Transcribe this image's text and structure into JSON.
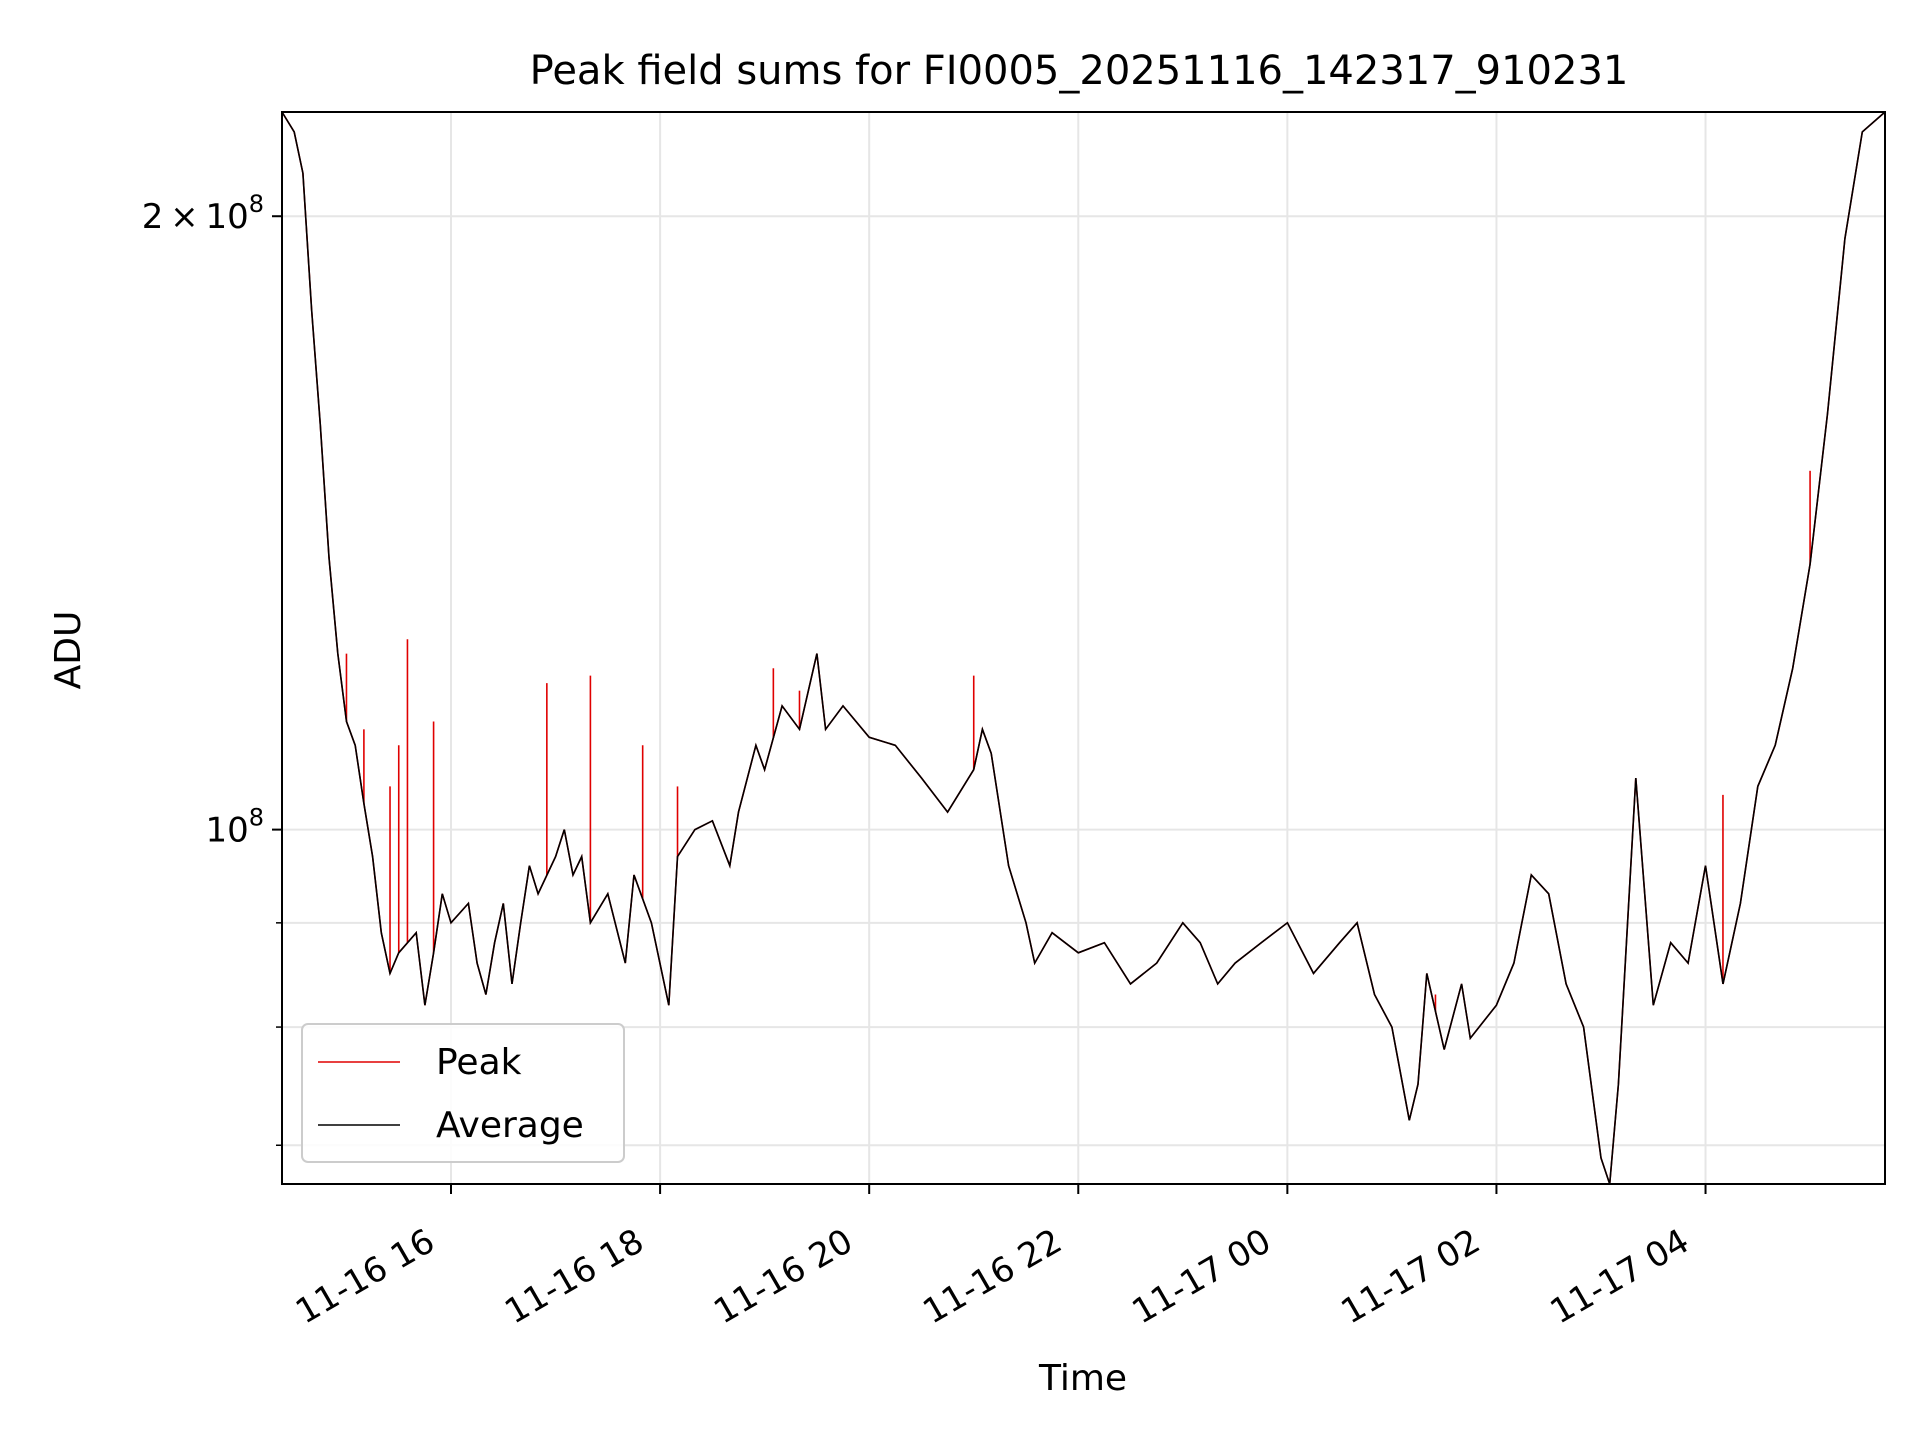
{
  "chart_data": {
    "type": "line",
    "title": "Peak field sums for FI0005_20251116_142317_910231",
    "xlabel": "Time",
    "ylabel": "ADU",
    "yscale": "log",
    "ylim": [
      67000000,
      225000000
    ],
    "xlim": [
      "2025-11-16 14:23",
      "2025-11-17 05:43"
    ],
    "grid": true,
    "legend_position": "lower-left",
    "x_ticks": [
      {
        "t": "2025-11-16 16:00",
        "label": "11-16 16"
      },
      {
        "t": "2025-11-16 18:00",
        "label": "11-16 18"
      },
      {
        "t": "2025-11-16 20:00",
        "label": "11-16 20"
      },
      {
        "t": "2025-11-16 22:00",
        "label": "11-16 22"
      },
      {
        "t": "2025-11-17 00:00",
        "label": "11-17 00"
      },
      {
        "t": "2025-11-17 02:00",
        "label": "11-17 02"
      },
      {
        "t": "2025-11-17 04:00",
        "label": "11-17 04"
      }
    ],
    "y_major_ticks": [
      {
        "value": 100000000,
        "base": "10",
        "exp": "8",
        "mantissa": ""
      },
      {
        "value": 200000000,
        "base": "10",
        "exp": "8",
        "mantissa": "2"
      }
    ],
    "y_minor_ticks": [
      70000000,
      80000000,
      90000000
    ],
    "series": [
      {
        "name": "Average",
        "color": "#000000",
        "points": [
          [
            "2025-11-16 14:23",
            225000000
          ],
          [
            "2025-11-16 14:30",
            220000000
          ],
          [
            "2025-11-16 14:35",
            210000000
          ],
          [
            "2025-11-16 14:40",
            180000000
          ],
          [
            "2025-11-16 14:45",
            158000000
          ],
          [
            "2025-11-16 14:50",
            136000000
          ],
          [
            "2025-11-16 14:55",
            122000000
          ],
          [
            "2025-11-16 15:00",
            113000000
          ],
          [
            "2025-11-16 15:05",
            110000000
          ],
          [
            "2025-11-16 15:10",
            103000000
          ],
          [
            "2025-11-16 15:15",
            97000000
          ],
          [
            "2025-11-16 15:20",
            89000000
          ],
          [
            "2025-11-16 15:25",
            85000000
          ],
          [
            "2025-11-16 15:30",
            87000000
          ],
          [
            "2025-11-16 15:40",
            89000000
          ],
          [
            "2025-11-16 15:45",
            82000000
          ],
          [
            "2025-11-16 15:50",
            87000000
          ],
          [
            "2025-11-16 15:55",
            93000000
          ],
          [
            "2025-11-16 16:00",
            90000000
          ],
          [
            "2025-11-16 16:10",
            92000000
          ],
          [
            "2025-11-16 16:15",
            86000000
          ],
          [
            "2025-11-16 16:20",
            83000000
          ],
          [
            "2025-11-16 16:25",
            88000000
          ],
          [
            "2025-11-16 16:30",
            92000000
          ],
          [
            "2025-11-16 16:35",
            84000000
          ],
          [
            "2025-11-16 16:40",
            90000000
          ],
          [
            "2025-11-16 16:45",
            96000000
          ],
          [
            "2025-11-16 16:50",
            93000000
          ],
          [
            "2025-11-16 17:00",
            97000000
          ],
          [
            "2025-11-16 17:05",
            100000000
          ],
          [
            "2025-11-16 17:10",
            95000000
          ],
          [
            "2025-11-16 17:15",
            97000000
          ],
          [
            "2025-11-16 17:20",
            90000000
          ],
          [
            "2025-11-16 17:30",
            93000000
          ],
          [
            "2025-11-16 17:40",
            86000000
          ],
          [
            "2025-11-16 17:45",
            95000000
          ],
          [
            "2025-11-16 17:55",
            90000000
          ],
          [
            "2025-11-16 18:05",
            82000000
          ],
          [
            "2025-11-16 18:10",
            97000000
          ],
          [
            "2025-11-16 18:20",
            100000000
          ],
          [
            "2025-11-16 18:30",
            101000000
          ],
          [
            "2025-11-16 18:40",
            96000000
          ],
          [
            "2025-11-16 18:45",
            102000000
          ],
          [
            "2025-11-16 18:55",
            110000000
          ],
          [
            "2025-11-16 19:00",
            107000000
          ],
          [
            "2025-11-16 19:10",
            115000000
          ],
          [
            "2025-11-16 19:20",
            112000000
          ],
          [
            "2025-11-16 19:30",
            122000000
          ],
          [
            "2025-11-16 19:35",
            112000000
          ],
          [
            "2025-11-16 19:45",
            115000000
          ],
          [
            "2025-11-16 20:00",
            111000000
          ],
          [
            "2025-11-16 20:15",
            110000000
          ],
          [
            "2025-11-16 20:30",
            106000000
          ],
          [
            "2025-11-16 20:45",
            102000000
          ],
          [
            "2025-11-16 21:00",
            107000000
          ],
          [
            "2025-11-16 21:05",
            112000000
          ],
          [
            "2025-11-16 21:10",
            109000000
          ],
          [
            "2025-11-16 21:20",
            96000000
          ],
          [
            "2025-11-16 21:30",
            90000000
          ],
          [
            "2025-11-16 21:35",
            86000000
          ],
          [
            "2025-11-16 21:45",
            89000000
          ],
          [
            "2025-11-16 22:00",
            87000000
          ],
          [
            "2025-11-16 22:15",
            88000000
          ],
          [
            "2025-11-16 22:30",
            84000000
          ],
          [
            "2025-11-16 22:45",
            86000000
          ],
          [
            "2025-11-16 23:00",
            90000000
          ],
          [
            "2025-11-16 23:10",
            88000000
          ],
          [
            "2025-11-16 23:20",
            84000000
          ],
          [
            "2025-11-16 23:30",
            86000000
          ],
          [
            "2025-11-16 23:45",
            88000000
          ],
          [
            "2025-11-17 00:00",
            90000000
          ],
          [
            "2025-11-17 00:15",
            85000000
          ],
          [
            "2025-11-17 00:30",
            88000000
          ],
          [
            "2025-11-17 00:40",
            90000000
          ],
          [
            "2025-11-17 00:50",
            83000000
          ],
          [
            "2025-11-17 01:00",
            80000000
          ],
          [
            "2025-11-17 01:10",
            72000000
          ],
          [
            "2025-11-17 01:15",
            75000000
          ],
          [
            "2025-11-17 01:20",
            85000000
          ],
          [
            "2025-11-17 01:30",
            78000000
          ],
          [
            "2025-11-17 01:40",
            84000000
          ],
          [
            "2025-11-17 01:45",
            79000000
          ],
          [
            "2025-11-17 02:00",
            82000000
          ],
          [
            "2025-11-17 02:10",
            86000000
          ],
          [
            "2025-11-17 02:20",
            95000000
          ],
          [
            "2025-11-17 02:30",
            93000000
          ],
          [
            "2025-11-17 02:40",
            84000000
          ],
          [
            "2025-11-17 02:50",
            80000000
          ],
          [
            "2025-11-17 03:00",
            69000000
          ],
          [
            "2025-11-17 03:05",
            67000000
          ],
          [
            "2025-11-17 03:10",
            75000000
          ],
          [
            "2025-11-17 03:20",
            106000000
          ],
          [
            "2025-11-17 03:30",
            82000000
          ],
          [
            "2025-11-17 03:40",
            88000000
          ],
          [
            "2025-11-17 03:50",
            86000000
          ],
          [
            "2025-11-17 04:00",
            96000000
          ],
          [
            "2025-11-17 04:10",
            84000000
          ],
          [
            "2025-11-17 04:20",
            92000000
          ],
          [
            "2025-11-17 04:30",
            105000000
          ],
          [
            "2025-11-17 04:40",
            110000000
          ],
          [
            "2025-11-17 04:50",
            120000000
          ],
          [
            "2025-11-17 05:00",
            135000000
          ],
          [
            "2025-11-17 05:10",
            160000000
          ],
          [
            "2025-11-17 05:20",
            195000000
          ],
          [
            "2025-11-17 05:30",
            220000000
          ],
          [
            "2025-11-17 05:43",
            225000000
          ]
        ]
      },
      {
        "name": "Peak",
        "color": "#e00000",
        "spikes": [
          [
            "2025-11-16 15:00",
            122000000
          ],
          [
            "2025-11-16 15:10",
            112000000
          ],
          [
            "2025-11-16 15:25",
            105000000
          ],
          [
            "2025-11-16 15:30",
            110000000
          ],
          [
            "2025-11-16 15:35",
            124000000
          ],
          [
            "2025-11-16 15:50",
            113000000
          ],
          [
            "2025-11-16 16:55",
            118000000
          ],
          [
            "2025-11-16 17:20",
            119000000
          ],
          [
            "2025-11-16 17:50",
            110000000
          ],
          [
            "2025-11-16 18:10",
            105000000
          ],
          [
            "2025-11-16 19:05",
            120000000
          ],
          [
            "2025-11-16 19:20",
            117000000
          ],
          [
            "2025-11-16 21:00",
            119000000
          ],
          [
            "2025-11-17 01:25",
            83000000
          ],
          [
            "2025-11-17 04:10",
            104000000
          ],
          [
            "2025-11-17 05:00",
            150000000
          ]
        ]
      }
    ]
  }
}
